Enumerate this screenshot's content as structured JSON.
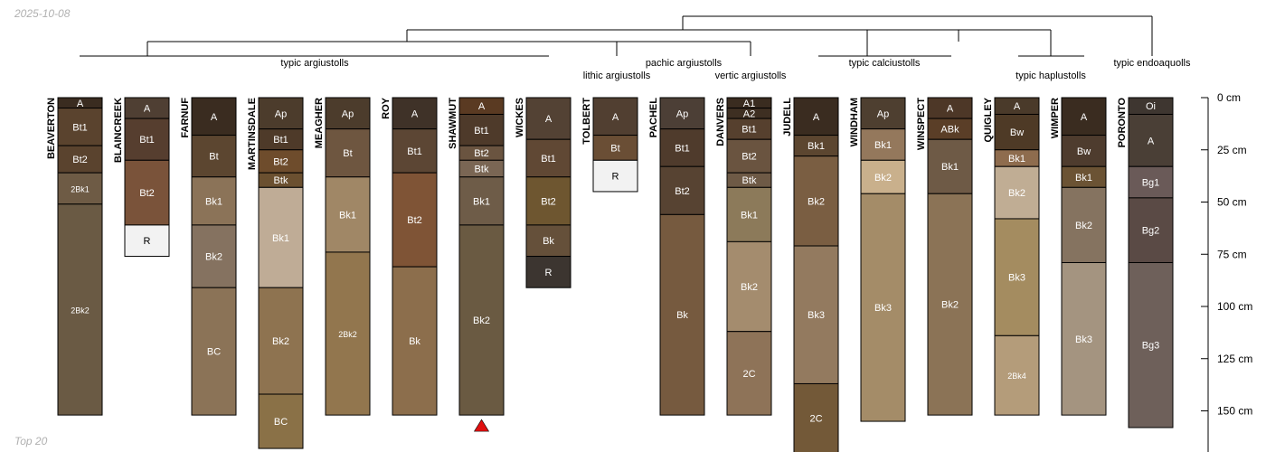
{
  "date": "2025-10-08",
  "subset": "Top 20",
  "depth_axis": {
    "unit": "cm",
    "max": 170,
    "ticks": [
      0,
      25,
      50,
      75,
      100,
      125,
      150
    ],
    "tick_labels": [
      "0 cm",
      "25 cm",
      "50 cm",
      "75 cm",
      "100 cm",
      "125 cm",
      "150 cm"
    ]
  },
  "groups": [
    {
      "label": "typic argiustolls"
    },
    {
      "label": "pachic argiustolls"
    },
    {
      "label": "lithic argiustolls"
    },
    {
      "label": "vertic argiustolls"
    },
    {
      "label": "typic calciustolls"
    },
    {
      "label": "typic haplustolls"
    },
    {
      "label": "typic endoaquolls"
    }
  ],
  "profiles": [
    {
      "name": "BEAVERTON",
      "horizons": [
        {
          "name": "A",
          "top": 0,
          "bottom": 5,
          "color": "#3a2c20"
        },
        {
          "name": "Bt1",
          "top": 5,
          "bottom": 23,
          "color": "#5a432e"
        },
        {
          "name": "Bt2",
          "top": 23,
          "bottom": 36,
          "color": "#5a432e"
        },
        {
          "name": "2Bk1",
          "top": 36,
          "bottom": 51,
          "color": "#6e5b45"
        },
        {
          "name": "2Bk2",
          "top": 51,
          "bottom": 152,
          "color": "#6a5a44"
        }
      ]
    },
    {
      "name": "BLAINCREEK",
      "horizons": [
        {
          "name": "A",
          "top": 0,
          "bottom": 10,
          "color": "#4f3f33"
        },
        {
          "name": "Bt1",
          "top": 10,
          "bottom": 30,
          "color": "#563e2f"
        },
        {
          "name": "Bt2",
          "top": 30,
          "bottom": 61,
          "color": "#7a533a"
        },
        {
          "name": "R",
          "top": 61,
          "bottom": 76,
          "color": "#f2f2f2"
        }
      ]
    },
    {
      "name": "FARNUF",
      "horizons": [
        {
          "name": "A",
          "top": 0,
          "bottom": 18,
          "color": "#3a2c20"
        },
        {
          "name": "Bt",
          "top": 18,
          "bottom": 38,
          "color": "#5c4630"
        },
        {
          "name": "Bk1",
          "top": 38,
          "bottom": 61,
          "color": "#8b7358"
        },
        {
          "name": "Bk2",
          "top": 61,
          "bottom": 91,
          "color": "#857260"
        },
        {
          "name": "BC",
          "top": 91,
          "bottom": 152,
          "color": "#8b7357"
        }
      ]
    },
    {
      "name": "MARTINSDALE",
      "horizons": [
        {
          "name": "Ap",
          "top": 0,
          "bottom": 15,
          "color": "#4c3c2c"
        },
        {
          "name": "Bt1",
          "top": 15,
          "bottom": 25,
          "color": "#4e3a29"
        },
        {
          "name": "Bt2",
          "top": 25,
          "bottom": 36,
          "color": "#6e4c2c"
        },
        {
          "name": "Btk",
          "top": 36,
          "bottom": 43,
          "color": "#6b5030"
        },
        {
          "name": "Bk1",
          "top": 43,
          "bottom": 91,
          "color": "#bfac96"
        },
        {
          "name": "Bk2",
          "top": 91,
          "bottom": 142,
          "color": "#8e7350"
        },
        {
          "name": "BC",
          "top": 142,
          "bottom": 168,
          "color": "#8a7147"
        }
      ]
    },
    {
      "name": "MEAGHER",
      "horizons": [
        {
          "name": "Ap",
          "top": 0,
          "bottom": 15,
          "color": "#4c3c2c"
        },
        {
          "name": "Bt",
          "top": 15,
          "bottom": 38,
          "color": "#6e5640"
        },
        {
          "name": "Bk1",
          "top": 38,
          "bottom": 74,
          "color": "#a08766"
        },
        {
          "name": "2Bk2",
          "top": 74,
          "bottom": 152,
          "color": "#92764e"
        }
      ]
    },
    {
      "name": "ROY",
      "horizons": [
        {
          "name": "A",
          "top": 0,
          "bottom": 15,
          "color": "#3f3228"
        },
        {
          "name": "Bt1",
          "top": 15,
          "bottom": 36,
          "color": "#5c4634"
        },
        {
          "name": "Bt2",
          "top": 36,
          "bottom": 81,
          "color": "#7f5436"
        },
        {
          "name": "Bk",
          "top": 81,
          "bottom": 152,
          "color": "#8c6e4c"
        }
      ]
    },
    {
      "name": "SHAWMUT",
      "horizons": [
        {
          "name": "A",
          "top": 0,
          "bottom": 8,
          "color": "#5a3a22"
        },
        {
          "name": "Bt1",
          "top": 8,
          "bottom": 23,
          "color": "#4e3a2a"
        },
        {
          "name": "Bt2",
          "top": 23,
          "bottom": 30,
          "color": "#6a5440"
        },
        {
          "name": "Btk",
          "top": 30,
          "bottom": 38,
          "color": "#7a6654"
        },
        {
          "name": "Bk1",
          "top": 38,
          "bottom": 61,
          "color": "#6e5c48"
        },
        {
          "name": "Bk2",
          "top": 61,
          "bottom": 152,
          "color": "#6a5a42"
        }
      ]
    },
    {
      "name": "WICKES",
      "horizons": [
        {
          "name": "A",
          "top": 0,
          "bottom": 20,
          "color": "#534234"
        },
        {
          "name": "Bt1",
          "top": 20,
          "bottom": 38,
          "color": "#604834"
        },
        {
          "name": "Bt2",
          "top": 38,
          "bottom": 61,
          "color": "#6e5630"
        },
        {
          "name": "Bk",
          "top": 61,
          "bottom": 76,
          "color": "#65503a"
        },
        {
          "name": "R",
          "top": 76,
          "bottom": 91,
          "color": "#3c3530"
        }
      ]
    },
    {
      "name": "TOLBERT",
      "horizons": [
        {
          "name": "A",
          "top": 0,
          "bottom": 18,
          "color": "#513f31"
        },
        {
          "name": "Bt",
          "top": 18,
          "bottom": 30,
          "color": "#6a4e35"
        },
        {
          "name": "R",
          "top": 30,
          "bottom": 45,
          "color": "#f2f2f2"
        }
      ]
    },
    {
      "name": "PACHEL",
      "horizons": [
        {
          "name": "Ap",
          "top": 0,
          "bottom": 15,
          "color": "#4c3f36"
        },
        {
          "name": "Bt1",
          "top": 15,
          "bottom": 33,
          "color": "#4f3b2c"
        },
        {
          "name": "Bt2",
          "top": 33,
          "bottom": 56,
          "color": "#574332"
        },
        {
          "name": "Bk",
          "top": 56,
          "bottom": 152,
          "color": "#765a3f"
        }
      ]
    },
    {
      "name": "DANVERS",
      "horizons": [
        {
          "name": "A1",
          "top": 0,
          "bottom": 5,
          "color": "#3a2c20"
        },
        {
          "name": "A2",
          "top": 5,
          "bottom": 10,
          "color": "#3e2f22"
        },
        {
          "name": "Bt1",
          "top": 10,
          "bottom": 20,
          "color": "#56402e"
        },
        {
          "name": "Bt2",
          "top": 20,
          "bottom": 36,
          "color": "#6a5440"
        },
        {
          "name": "Btk",
          "top": 36,
          "bottom": 43,
          "color": "#6e5a46"
        },
        {
          "name": "Bk1",
          "top": 43,
          "bottom": 69,
          "color": "#8c7a5a"
        },
        {
          "name": "Bk2",
          "top": 69,
          "bottom": 112,
          "color": "#a48c6e"
        },
        {
          "name": "2C",
          "top": 112,
          "bottom": 152,
          "color": "#8e7358"
        }
      ]
    },
    {
      "name": "JUDELL",
      "horizons": [
        {
          "name": "A",
          "top": 0,
          "bottom": 18,
          "color": "#3a2c20"
        },
        {
          "name": "Bk1",
          "top": 18,
          "bottom": 28,
          "color": "#5c4630"
        },
        {
          "name": "Bk2",
          "top": 28,
          "bottom": 71,
          "color": "#7a5e42"
        },
        {
          "name": "Bk3",
          "top": 71,
          "bottom": 137,
          "color": "#937a5f"
        },
        {
          "name": "2C",
          "top": 137,
          "bottom": 170,
          "color": "#735938"
        }
      ]
    },
    {
      "name": "WINDHAM",
      "horizons": [
        {
          "name": "Ap",
          "top": 0,
          "bottom": 15,
          "color": "#4e3f30"
        },
        {
          "name": "Bk1",
          "top": 15,
          "bottom": 30,
          "color": "#94785c"
        },
        {
          "name": "Bk2",
          "top": 30,
          "bottom": 46,
          "color": "#c9b08c"
        },
        {
          "name": "Bk3",
          "top": 46,
          "bottom": 155,
          "color": "#a48c68"
        }
      ]
    },
    {
      "name": "WINSPECT",
      "horizons": [
        {
          "name": "A",
          "top": 0,
          "bottom": 10,
          "color": "#4d3727"
        },
        {
          "name": "ABk",
          "top": 10,
          "bottom": 20,
          "color": "#5a3e27"
        },
        {
          "name": "Bk1",
          "top": 20,
          "bottom": 46,
          "color": "#6e5a46"
        },
        {
          "name": "Bk2",
          "top": 46,
          "bottom": 152,
          "color": "#8b7356"
        }
      ]
    },
    {
      "name": "QUIGLEY",
      "horizons": [
        {
          "name": "A",
          "top": 0,
          "bottom": 8,
          "color": "#4a3a2a"
        },
        {
          "name": "Bw",
          "top": 8,
          "bottom": 25,
          "color": "#4e3a26"
        },
        {
          "name": "Bk1",
          "top": 25,
          "bottom": 33,
          "color": "#8e6c4e"
        },
        {
          "name": "Bk2",
          "top": 33,
          "bottom": 58,
          "color": "#c0ad94"
        },
        {
          "name": "Bk3",
          "top": 58,
          "bottom": 114,
          "color": "#a48c60"
        },
        {
          "name": "2Bk4",
          "top": 114,
          "bottom": 152,
          "color": "#b49c7a"
        }
      ]
    },
    {
      "name": "WIMPER",
      "horizons": [
        {
          "name": "A",
          "top": 0,
          "bottom": 18,
          "color": "#3a2c20"
        },
        {
          "name": "Bw",
          "top": 18,
          "bottom": 33,
          "color": "#4e3c2e"
        },
        {
          "name": "Bk1",
          "top": 33,
          "bottom": 43,
          "color": "#6b5334"
        },
        {
          "name": "Bk2",
          "top": 43,
          "bottom": 79,
          "color": "#857360"
        },
        {
          "name": "Bk3",
          "top": 79,
          "bottom": 152,
          "color": "#a49480"
        }
      ]
    },
    {
      "name": "PORONTO",
      "horizons": [
        {
          "name": "Oi",
          "top": 0,
          "bottom": 8,
          "color": "#3e3630"
        },
        {
          "name": "A",
          "top": 8,
          "bottom": 33,
          "color": "#4a3f36"
        },
        {
          "name": "Bg1",
          "top": 33,
          "bottom": 48,
          "color": "#6a5a58"
        },
        {
          "name": "Bg2",
          "top": 48,
          "bottom": 79,
          "color": "#5a4a45"
        },
        {
          "name": "Bg3",
          "top": 79,
          "bottom": 158,
          "color": "#6e605a"
        }
      ]
    }
  ],
  "markers": [
    {
      "profile": "SHAWMUT",
      "symbol": "triangle",
      "color": "#e01010"
    }
  ]
}
